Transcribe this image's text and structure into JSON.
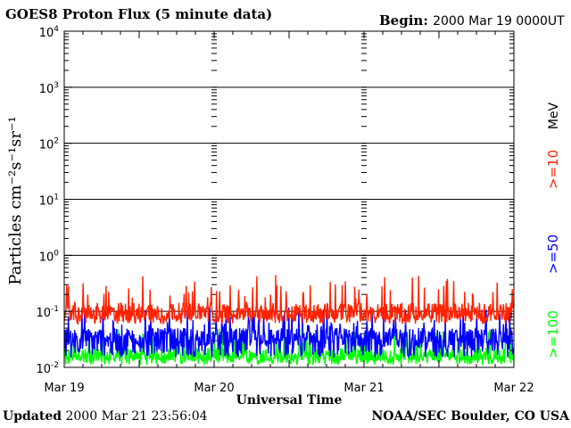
{
  "header": {
    "title": "GOES8 Proton Flux (5 minute data)",
    "begin_label": "Begin:",
    "begin_value": "2000 Mar 19 0000UT"
  },
  "footer": {
    "updated_label": "Updated",
    "updated_value": "2000 Mar 21 23:56:04",
    "credit": "NOAA/SEC Boulder, CO USA"
  },
  "chart_data": {
    "type": "line",
    "title": "GOES8 Proton Flux (5 minute data)",
    "xlabel": "Universal Time",
    "ylabel": "Particles cm⁻²s⁻¹sr⁻¹",
    "yscale": "log",
    "ylim": [
      0.01,
      10000
    ],
    "x_ticks": [
      "Mar 19",
      "Mar 20",
      "Mar 21",
      "Mar 22"
    ],
    "xlim_days": [
      0,
      3
    ],
    "y_ticks": [
      {
        "mant": "10",
        "exp": "-2"
      },
      {
        "mant": "10",
        "exp": "-1"
      },
      {
        "mant": "10",
        "exp": "0"
      },
      {
        "mant": "10",
        "exp": "1"
      },
      {
        "mant": "10",
        "exp": "2"
      },
      {
        "mant": "10",
        "exp": "3"
      },
      {
        "mant": "10",
        "exp": "4"
      }
    ],
    "grid": true,
    "legend_unit": "MeV",
    "series": [
      {
        "name": ">=10",
        "color": "#ff2200",
        "typical": 0.1,
        "range": [
          0.06,
          0.45
        ]
      },
      {
        "name": ">=50",
        "color": "#0000ff",
        "typical": 0.035,
        "range": [
          0.015,
          0.12
        ]
      },
      {
        "name": ">=100",
        "color": "#00ff00",
        "typical": 0.017,
        "range": [
          0.011,
          0.05
        ]
      }
    ]
  }
}
